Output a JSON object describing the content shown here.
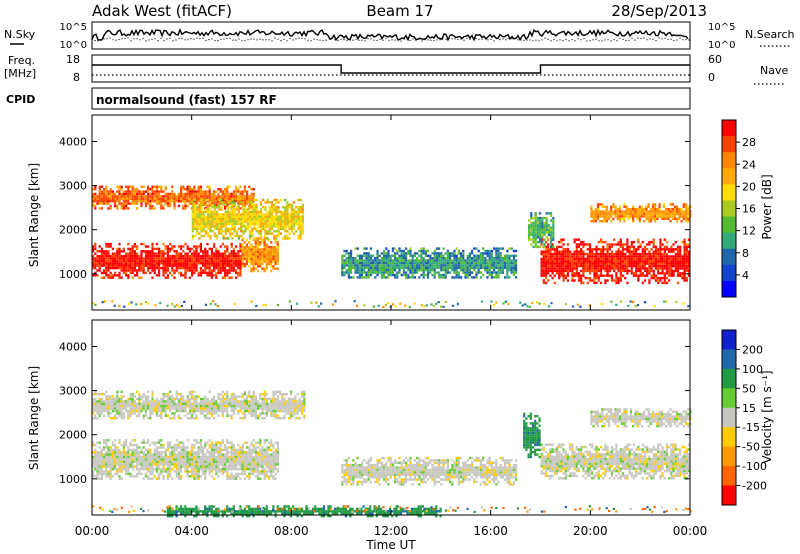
{
  "header": {
    "station": "Adak West (fitACF)",
    "beam": "Beam 17",
    "date": "28/Sep/2013"
  },
  "params_panel": {
    "nsky_label": "N.Sky",
    "nsearch_label": "N.Search",
    "freq_label": "Freq.",
    "freq_unit": "[MHz]",
    "nave_label": "Nave",
    "cpid_label": "CPID",
    "noise_ticks": [
      "10^5",
      "10^0"
    ],
    "noise_ticks_right": [
      "10^5",
      "10^0"
    ],
    "freq_ticks": [
      "18",
      "8"
    ],
    "nave_ticks": [
      "60",
      "0"
    ],
    "cpid_text": "normalsound (fast) 157 RF"
  },
  "axes": {
    "ylabel": "Slant Range [km]",
    "xlabel": "Time UT",
    "y_ticks": [
      "1000",
      "2000",
      "3000",
      "4000"
    ],
    "x_ticks": [
      "00:00",
      "04:00",
      "08:00",
      "12:00",
      "16:00",
      "20:00",
      "00:00"
    ]
  },
  "colorbars": {
    "power": {
      "label": "Power [dB]",
      "ticks": [
        "28",
        "24",
        "20",
        "16",
        "12",
        "8",
        "4"
      ],
      "colors": [
        "#ff0000",
        "#ff4400",
        "#ff8800",
        "#ffaa00",
        "#ffdd00",
        "#aacc22",
        "#55bb33",
        "#33aa77",
        "#2266aa",
        "#1144cc",
        "#0000ff"
      ]
    },
    "velocity": {
      "label": "Velocity [m s⁻¹]",
      "ticks": [
        "200",
        "100",
        "50",
        "15",
        "-15",
        "-50",
        "-100",
        "-200"
      ],
      "colors": [
        "#1122cc",
        "#2266aa",
        "#229944",
        "#66cc33",
        "#c8c8c0",
        "#ffcc00",
        "#ff9900",
        "#ff6600",
        "#ff0000"
      ]
    }
  },
  "chart_data": [
    {
      "type": "heatmap",
      "title": "",
      "xlabel": "Time UT",
      "ylabel": "Slant Range [km]",
      "xlim": [
        0,
        24
      ],
      "ylim": [
        180,
        4600
      ],
      "colorbar": "Power [dB]",
      "regions": [
        {
          "t0": 0.0,
          "t1": 6.0,
          "r0": 900,
          "r1": 1700,
          "value_db": 28
        },
        {
          "t0": 6.0,
          "t1": 7.5,
          "r0": 1050,
          "r1": 1850,
          "value_db": 22
        },
        {
          "t0": 0.0,
          "t1": 6.5,
          "r0": 2500,
          "r1": 3000,
          "value_db": 24
        },
        {
          "t0": 4.0,
          "t1": 8.5,
          "r0": 1800,
          "r1": 2700,
          "value_db": 18
        },
        {
          "t0": 10.0,
          "t1": 17.0,
          "r0": 900,
          "r1": 1600,
          "value_db": 10
        },
        {
          "t0": 18.0,
          "t1": 24.0,
          "r0": 800,
          "r1": 1800,
          "value_db": 28
        },
        {
          "t0": 20.0,
          "t1": 24.0,
          "r0": 2200,
          "r1": 2600,
          "value_db": 22
        },
        {
          "t0": 17.5,
          "t1": 18.5,
          "r0": 1600,
          "r1": 2400,
          "value_db": 12
        }
      ]
    },
    {
      "type": "heatmap",
      "title": "",
      "xlabel": "Time UT",
      "ylabel": "Slant Range [km]",
      "xlim": [
        0,
        24
      ],
      "ylim": [
        180,
        4600
      ],
      "colorbar": "Velocity [m s⁻¹]",
      "regions": [
        {
          "t0": 0.0,
          "t1": 7.5,
          "r0": 1000,
          "r1": 1900,
          "value_ms": 0
        },
        {
          "t0": 0.0,
          "t1": 8.5,
          "r0": 2400,
          "r1": 3000,
          "value_ms": 0
        },
        {
          "t0": 10.0,
          "t1": 17.0,
          "r0": 900,
          "r1": 1500,
          "value_ms": 0
        },
        {
          "t0": 18.0,
          "t1": 24.0,
          "r0": 1000,
          "r1": 1800,
          "value_ms": 0
        },
        {
          "t0": 20.0,
          "t1": 24.0,
          "r0": 2200,
          "r1": 2600,
          "value_ms": 0
        },
        {
          "t0": 3.0,
          "t1": 14.0,
          "r0": 180,
          "r1": 400,
          "value_ms": 60
        },
        {
          "t0": 17.3,
          "t1": 18.0,
          "r0": 1500,
          "r1": 2500,
          "value_ms": 60
        }
      ]
    }
  ]
}
